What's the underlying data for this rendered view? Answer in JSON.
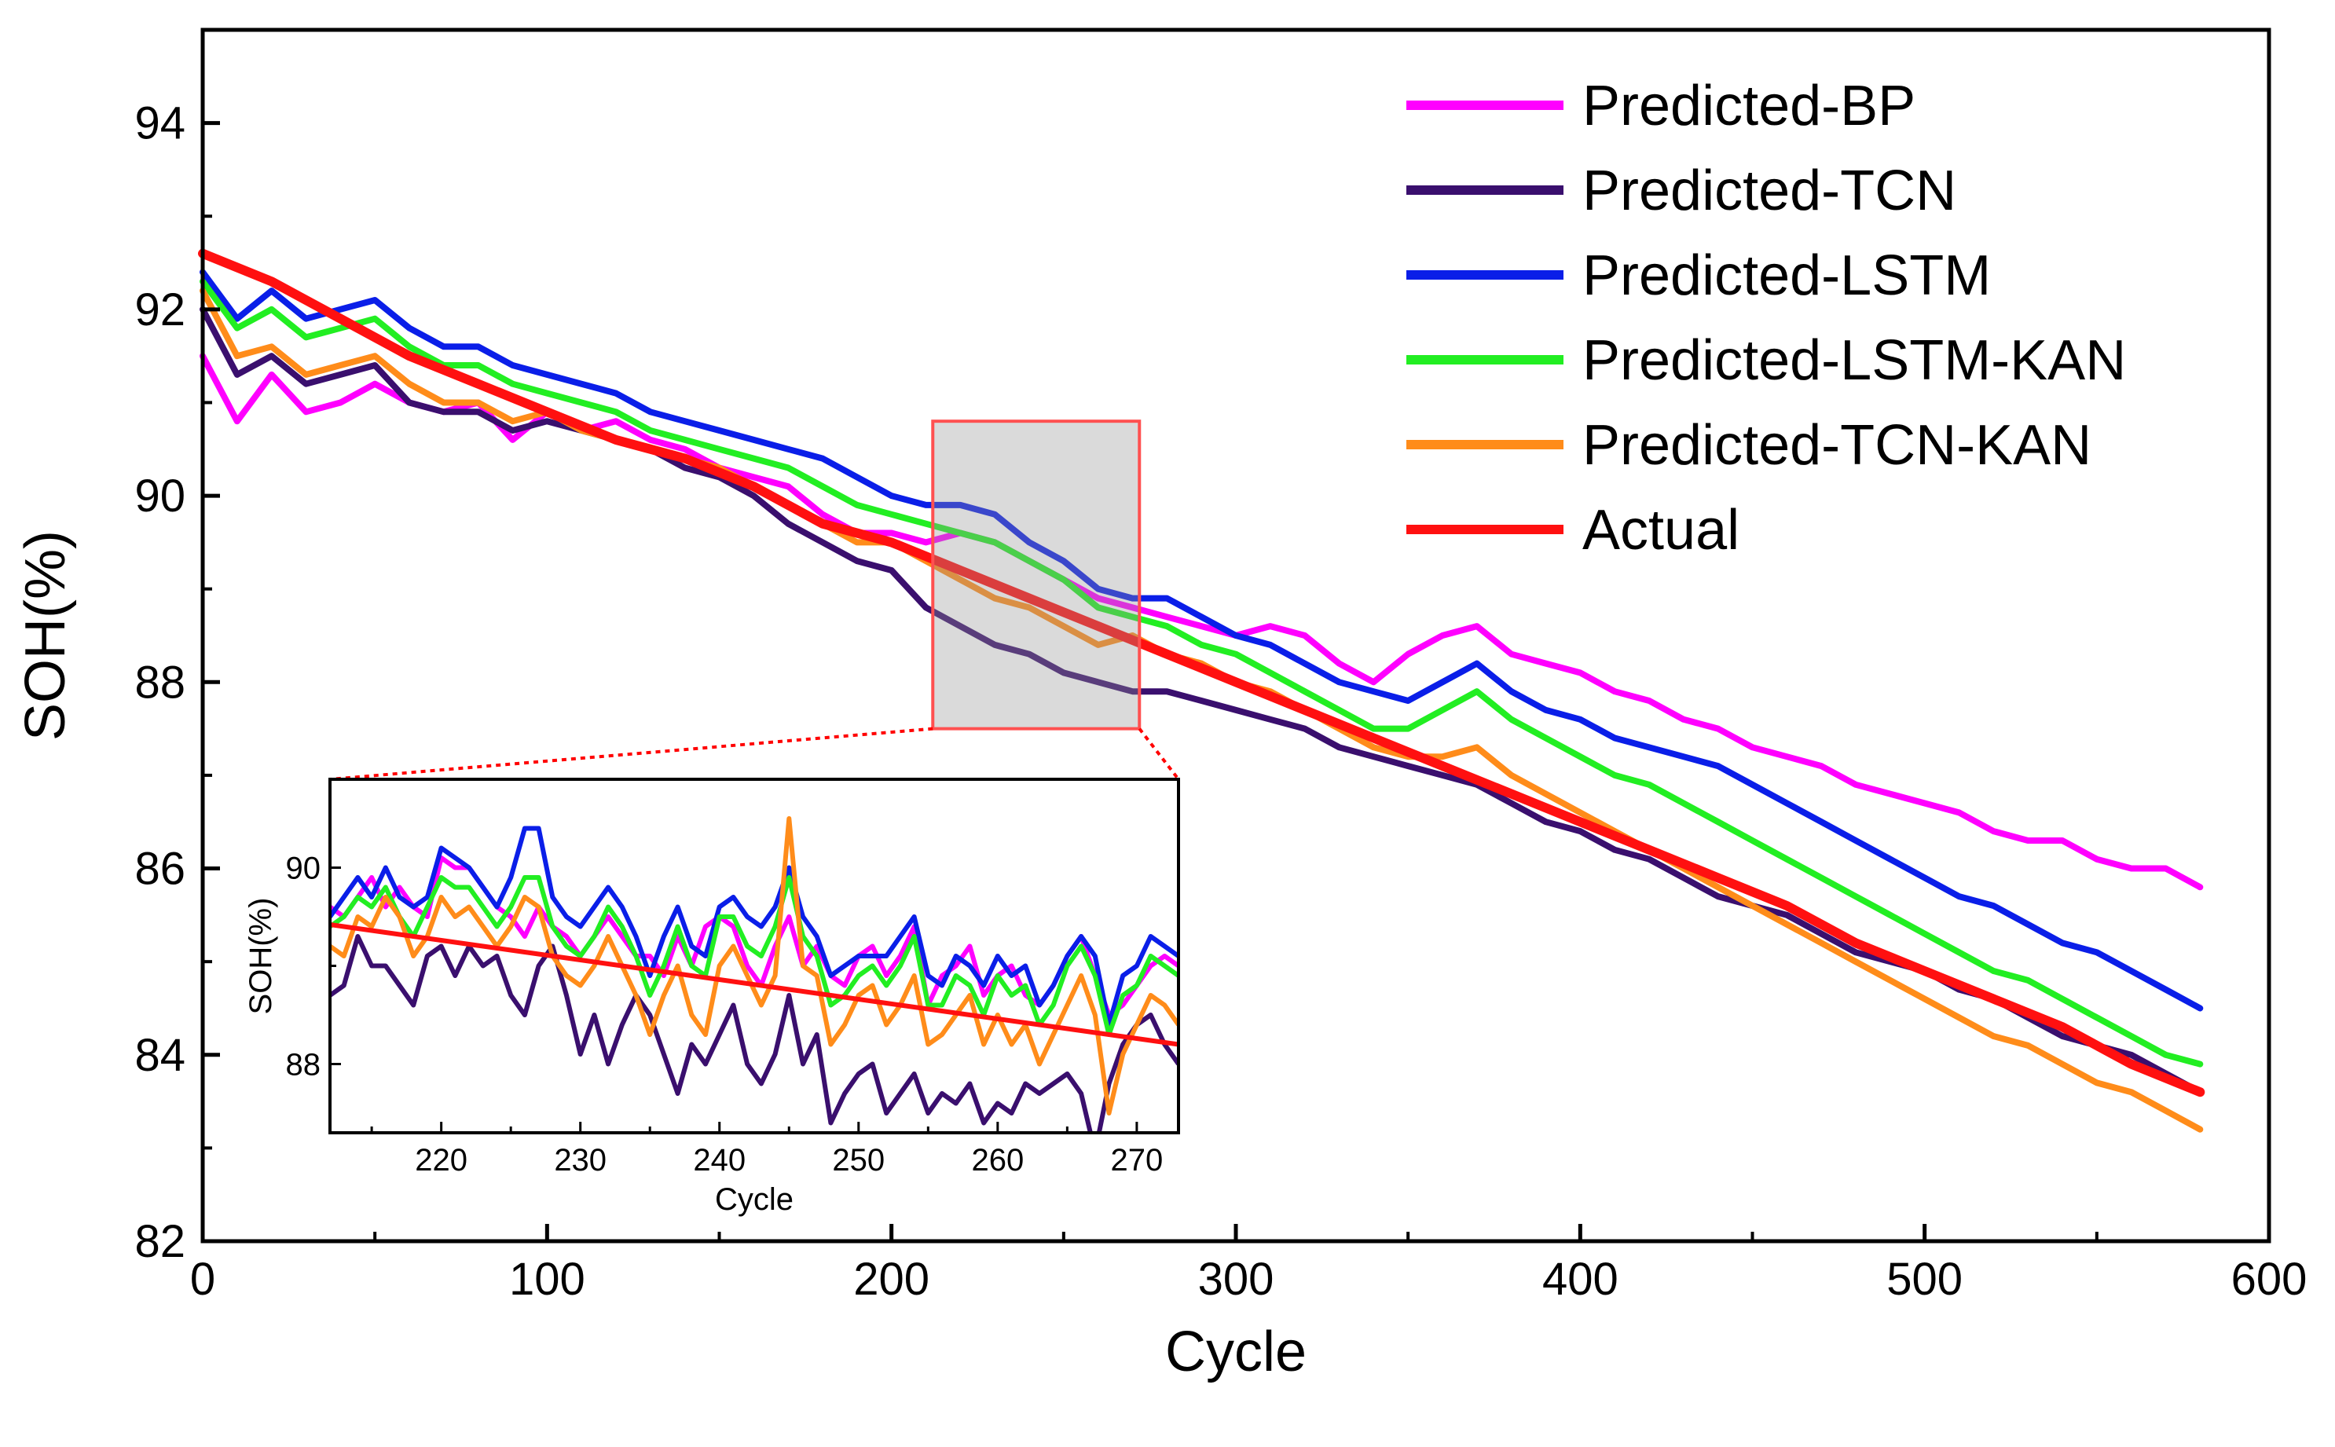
{
  "chart_data": {
    "type": "line",
    "xlabel": "Cycle",
    "ylabel": "SOH(%)",
    "xlim": [
      0,
      600
    ],
    "ylim": [
      82,
      95
    ],
    "xticks": [
      0,
      100,
      200,
      300,
      400,
      500,
      600
    ],
    "yticks": [
      82,
      84,
      86,
      88,
      90,
      92,
      94
    ],
    "legend_position": "top-right",
    "series": [
      {
        "name": "Predicted-BP",
        "color": "#ff00ff",
        "x": [
          0,
          10,
          20,
          30,
          40,
          50,
          60,
          70,
          80,
          90,
          100,
          110,
          120,
          130,
          140,
          150,
          160,
          170,
          180,
          190,
          200,
          210,
          220,
          230,
          240,
          250,
          260,
          270,
          280,
          290,
          300,
          310,
          320,
          330,
          340,
          350,
          360,
          370,
          380,
          390,
          400,
          410,
          420,
          430,
          440,
          450,
          460,
          470,
          480,
          490,
          500,
          510,
          520,
          530,
          540,
          550,
          560,
          570,
          580
        ],
        "y": [
          91.5,
          90.8,
          91.3,
          90.9,
          91.0,
          91.2,
          91.0,
          90.9,
          91.0,
          90.6,
          90.9,
          90.7,
          90.8,
          90.6,
          90.5,
          90.3,
          90.2,
          90.1,
          89.8,
          89.6,
          89.6,
          89.5,
          89.6,
          89.5,
          89.3,
          89.1,
          88.9,
          88.8,
          88.7,
          88.6,
          88.5,
          88.6,
          88.5,
          88.2,
          88.0,
          88.3,
          88.5,
          88.6,
          88.3,
          88.2,
          88.1,
          87.9,
          87.8,
          87.6,
          87.5,
          87.3,
          87.2,
          87.1,
          86.9,
          86.8,
          86.7,
          86.6,
          86.4,
          86.3,
          86.3,
          86.1,
          86.0,
          86.0,
          85.8
        ]
      },
      {
        "name": "Predicted-TCN",
        "color": "#3a0f6e",
        "x": [
          0,
          10,
          20,
          30,
          40,
          50,
          60,
          70,
          80,
          90,
          100,
          110,
          120,
          130,
          140,
          150,
          160,
          170,
          180,
          190,
          200,
          210,
          220,
          230,
          240,
          250,
          260,
          270,
          280,
          290,
          300,
          310,
          320,
          330,
          340,
          350,
          360,
          370,
          380,
          390,
          400,
          410,
          420,
          430,
          440,
          450,
          460,
          470,
          480,
          490,
          500,
          510,
          520,
          530,
          540,
          550,
          560,
          570,
          580
        ],
        "y": [
          92.0,
          91.3,
          91.5,
          91.2,
          91.3,
          91.4,
          91.0,
          90.9,
          90.9,
          90.7,
          90.8,
          90.7,
          90.6,
          90.5,
          90.3,
          90.2,
          90.0,
          89.7,
          89.5,
          89.3,
          89.2,
          88.8,
          88.6,
          88.4,
          88.3,
          88.1,
          88.0,
          87.9,
          87.9,
          87.8,
          87.7,
          87.6,
          87.5,
          87.3,
          87.2,
          87.1,
          87.0,
          86.9,
          86.7,
          86.5,
          86.4,
          86.2,
          86.1,
          85.9,
          85.7,
          85.6,
          85.5,
          85.3,
          85.1,
          85.0,
          84.9,
          84.7,
          84.6,
          84.4,
          84.2,
          84.1,
          84.0,
          83.8,
          83.6
        ]
      },
      {
        "name": "Predicted-LSTM",
        "color": "#0a1ee8",
        "x": [
          0,
          10,
          20,
          30,
          40,
          50,
          60,
          70,
          80,
          90,
          100,
          110,
          120,
          130,
          140,
          150,
          160,
          170,
          180,
          190,
          200,
          210,
          220,
          230,
          240,
          250,
          260,
          270,
          280,
          290,
          300,
          310,
          320,
          330,
          340,
          350,
          360,
          370,
          380,
          390,
          400,
          410,
          420,
          430,
          440,
          450,
          460,
          470,
          480,
          490,
          500,
          510,
          520,
          530,
          540,
          550,
          560,
          570,
          580
        ],
        "y": [
          92.4,
          91.9,
          92.2,
          91.9,
          92.0,
          92.1,
          91.8,
          91.6,
          91.6,
          91.4,
          91.3,
          91.2,
          91.1,
          90.9,
          90.8,
          90.7,
          90.6,
          90.5,
          90.4,
          90.2,
          90.0,
          89.9,
          89.9,
          89.8,
          89.5,
          89.3,
          89.0,
          88.9,
          88.9,
          88.7,
          88.5,
          88.4,
          88.2,
          88.0,
          87.9,
          87.8,
          88.0,
          88.2,
          87.9,
          87.7,
          87.6,
          87.4,
          87.3,
          87.2,
          87.1,
          86.9,
          86.7,
          86.5,
          86.3,
          86.1,
          85.9,
          85.7,
          85.6,
          85.4,
          85.2,
          85.1,
          84.9,
          84.7,
          84.5
        ]
      },
      {
        "name": "Predicted-LSTM-KAN",
        "color": "#22ee22",
        "x": [
          0,
          10,
          20,
          30,
          40,
          50,
          60,
          70,
          80,
          90,
          100,
          110,
          120,
          130,
          140,
          150,
          160,
          170,
          180,
          190,
          200,
          210,
          220,
          230,
          240,
          250,
          260,
          270,
          280,
          290,
          300,
          310,
          320,
          330,
          340,
          350,
          360,
          370,
          380,
          390,
          400,
          410,
          420,
          430,
          440,
          450,
          460,
          470,
          480,
          490,
          500,
          510,
          520,
          530,
          540,
          550,
          560,
          570,
          580
        ],
        "y": [
          92.3,
          91.8,
          92.0,
          91.7,
          91.8,
          91.9,
          91.6,
          91.4,
          91.4,
          91.2,
          91.1,
          91.0,
          90.9,
          90.7,
          90.6,
          90.5,
          90.4,
          90.3,
          90.1,
          89.9,
          89.8,
          89.7,
          89.6,
          89.5,
          89.3,
          89.1,
          88.8,
          88.7,
          88.6,
          88.4,
          88.3,
          88.1,
          87.9,
          87.7,
          87.5,
          87.5,
          87.7,
          87.9,
          87.6,
          87.4,
          87.2,
          87.0,
          86.9,
          86.7,
          86.5,
          86.3,
          86.1,
          85.9,
          85.7,
          85.5,
          85.3,
          85.1,
          84.9,
          84.8,
          84.6,
          84.4,
          84.2,
          84.0,
          83.9
        ]
      },
      {
        "name": "Predicted-TCN-KAN",
        "color": "#ff8c1a",
        "x": [
          0,
          10,
          20,
          30,
          40,
          50,
          60,
          70,
          80,
          90,
          100,
          110,
          120,
          130,
          140,
          150,
          160,
          170,
          180,
          190,
          200,
          210,
          220,
          230,
          240,
          250,
          260,
          270,
          280,
          290,
          300,
          310,
          320,
          330,
          340,
          350,
          360,
          370,
          380,
          390,
          400,
          410,
          420,
          430,
          440,
          450,
          460,
          470,
          480,
          490,
          500,
          510,
          520,
          530,
          540,
          550,
          560,
          570,
          580
        ],
        "y": [
          92.2,
          91.5,
          91.6,
          91.3,
          91.4,
          91.5,
          91.2,
          91.0,
          91.0,
          90.8,
          90.9,
          90.7,
          90.6,
          90.5,
          90.4,
          90.3,
          90.1,
          89.9,
          89.7,
          89.5,
          89.5,
          89.3,
          89.1,
          88.9,
          88.8,
          88.6,
          88.4,
          88.5,
          88.3,
          88.2,
          88.0,
          87.9,
          87.7,
          87.5,
          87.3,
          87.2,
          87.2,
          87.3,
          87.0,
          86.8,
          86.6,
          86.4,
          86.2,
          86.0,
          85.8,
          85.6,
          85.4,
          85.2,
          85.0,
          84.8,
          84.6,
          84.4,
          84.2,
          84.1,
          83.9,
          83.7,
          83.6,
          83.4,
          83.2
        ]
      },
      {
        "name": "Actual",
        "color": "#ff1010",
        "x": [
          0,
          20,
          40,
          60,
          80,
          100,
          120,
          140,
          160,
          180,
          200,
          220,
          240,
          260,
          280,
          300,
          320,
          340,
          360,
          380,
          400,
          420,
          440,
          460,
          480,
          500,
          520,
          540,
          560,
          580
        ],
        "y": [
          92.6,
          92.3,
          91.9,
          91.5,
          91.2,
          90.9,
          90.6,
          90.4,
          90.1,
          89.7,
          89.5,
          89.2,
          88.9,
          88.6,
          88.3,
          88.0,
          87.7,
          87.4,
          87.1,
          86.8,
          86.5,
          86.2,
          85.9,
          85.6,
          85.2,
          84.9,
          84.6,
          84.3,
          83.9,
          83.6
        ]
      }
    ],
    "zoom_box": {
      "x": [
        212,
        272
      ],
      "y": [
        87.5,
        90.8
      ]
    },
    "inset": {
      "xlabel": "Cycle",
      "ylabel": "SOH(%)",
      "xlim": [
        212,
        273
      ],
      "ylim": [
        87.3,
        90.9
      ],
      "xticks": [
        220,
        230,
        240,
        250,
        260,
        270
      ],
      "yticks": [
        88,
        90
      ],
      "x": [
        212,
        213,
        214,
        215,
        216,
        217,
        218,
        219,
        220,
        221,
        222,
        223,
        224,
        225,
        226,
        227,
        228,
        229,
        230,
        231,
        232,
        233,
        234,
        235,
        236,
        237,
        238,
        239,
        240,
        241,
        242,
        243,
        244,
        245,
        246,
        247,
        248,
        249,
        250,
        251,
        252,
        253,
        254,
        255,
        256,
        257,
        258,
        259,
        260,
        261,
        262,
        263,
        264,
        265,
        266,
        267,
        268,
        269,
        270,
        271,
        272,
        273
      ],
      "series": {
        "Predicted-BP": [
          89.6,
          89.5,
          89.7,
          89.9,
          89.6,
          89.8,
          89.6,
          89.5,
          90.1,
          90.0,
          90.0,
          89.8,
          89.6,
          89.5,
          89.3,
          89.6,
          89.4,
          89.3,
          89.1,
          89.3,
          89.5,
          89.3,
          89.1,
          89.1,
          88.9,
          89.3,
          89.0,
          89.4,
          89.5,
          89.4,
          89.0,
          88.8,
          89.2,
          89.5,
          89.0,
          89.2,
          88.9,
          88.8,
          89.1,
          89.2,
          88.9,
          89.1,
          89.4,
          88.6,
          88.9,
          89.0,
          89.2,
          88.7,
          88.9,
          89.0,
          88.7,
          88.6,
          88.8,
          89.1,
          89.3,
          88.9,
          88.5,
          88.6,
          88.8,
          89.0,
          89.1,
          89.0
        ],
        "Predicted-TCN": [
          88.7,
          88.8,
          89.3,
          89.0,
          89.0,
          88.8,
          88.6,
          89.1,
          89.2,
          88.9,
          89.2,
          89.0,
          89.1,
          88.7,
          88.5,
          89.0,
          89.2,
          88.7,
          88.1,
          88.5,
          88.0,
          88.4,
          88.7,
          88.5,
          88.1,
          87.7,
          88.2,
          88.0,
          88.3,
          88.6,
          88.0,
          87.8,
          88.1,
          88.7,
          88.0,
          88.3,
          87.4,
          87.7,
          87.9,
          88.0,
          87.5,
          87.7,
          87.9,
          87.5,
          87.7,
          87.6,
          87.8,
          87.4,
          87.6,
          87.5,
          87.8,
          87.7,
          87.8,
          87.9,
          87.7,
          87.1,
          87.8,
          88.2,
          88.4,
          88.5,
          88.2,
          88.0
        ],
        "Predicted-LSTM": [
          89.5,
          89.7,
          89.9,
          89.7,
          90.0,
          89.7,
          89.6,
          89.7,
          90.2,
          90.1,
          90.0,
          89.8,
          89.6,
          89.9,
          90.4,
          90.4,
          89.7,
          89.5,
          89.4,
          89.6,
          89.8,
          89.6,
          89.3,
          88.9,
          89.3,
          89.6,
          89.2,
          89.1,
          89.6,
          89.7,
          89.5,
          89.4,
          89.6,
          90.0,
          89.5,
          89.3,
          88.9,
          89.0,
          89.1,
          89.1,
          89.1,
          89.3,
          89.5,
          88.9,
          88.8,
          89.1,
          89.0,
          88.8,
          89.1,
          88.9,
          89.0,
          88.6,
          88.8,
          89.1,
          89.3,
          89.1,
          88.4,
          88.9,
          89.0,
          89.3,
          89.2,
          89.1
        ],
        "Predicted-LSTM-KAN": [
          89.4,
          89.5,
          89.7,
          89.6,
          89.8,
          89.5,
          89.3,
          89.6,
          89.9,
          89.8,
          89.8,
          89.6,
          89.4,
          89.6,
          89.9,
          89.9,
          89.4,
          89.2,
          89.1,
          89.3,
          89.6,
          89.4,
          89.1,
          88.7,
          89.0,
          89.4,
          89.0,
          88.9,
          89.5,
          89.5,
          89.2,
          89.1,
          89.4,
          89.9,
          89.3,
          89.1,
          88.6,
          88.7,
          88.9,
          89.0,
          88.8,
          89.0,
          89.3,
          88.6,
          88.6,
          88.9,
          88.8,
          88.5,
          88.9,
          88.7,
          88.8,
          88.4,
          88.6,
          89.0,
          89.2,
          88.9,
          88.3,
          88.7,
          88.8,
          89.1,
          89.0,
          88.9
        ],
        "Predicted-TCN-KAN": [
          89.2,
          89.1,
          89.5,
          89.4,
          89.7,
          89.5,
          89.1,
          89.3,
          89.7,
          89.5,
          89.6,
          89.4,
          89.2,
          89.4,
          89.7,
          89.6,
          89.1,
          88.9,
          88.8,
          89.0,
          89.3,
          89.0,
          88.7,
          88.3,
          88.7,
          89.0,
          88.5,
          88.3,
          89.0,
          89.2,
          88.9,
          88.6,
          88.9,
          90.5,
          89.0,
          88.9,
          88.2,
          88.4,
          88.7,
          88.8,
          88.4,
          88.6,
          88.9,
          88.2,
          88.3,
          88.5,
          88.7,
          88.2,
          88.5,
          88.2,
          88.4,
          88.0,
          88.3,
          88.6,
          88.9,
          88.5,
          87.5,
          88.1,
          88.4,
          88.7,
          88.6,
          88.4
        ],
        "Actual": [
          89.42,
          89.4,
          89.38,
          89.36,
          89.34,
          89.32,
          89.3,
          89.28,
          89.26,
          89.24,
          89.22,
          89.2,
          89.18,
          89.16,
          89.14,
          89.12,
          89.1,
          89.08,
          89.06,
          89.04,
          89.02,
          89.0,
          88.98,
          88.96,
          88.94,
          88.92,
          88.9,
          88.88,
          88.86,
          88.84,
          88.82,
          88.8,
          88.78,
          88.76,
          88.74,
          88.72,
          88.7,
          88.68,
          88.66,
          88.64,
          88.62,
          88.6,
          88.58,
          88.56,
          88.54,
          88.52,
          88.5,
          88.48,
          88.46,
          88.44,
          88.42,
          88.4,
          88.38,
          88.36,
          88.34,
          88.32,
          88.3,
          88.28,
          88.26,
          88.24,
          88.22,
          88.2
        ]
      }
    }
  }
}
